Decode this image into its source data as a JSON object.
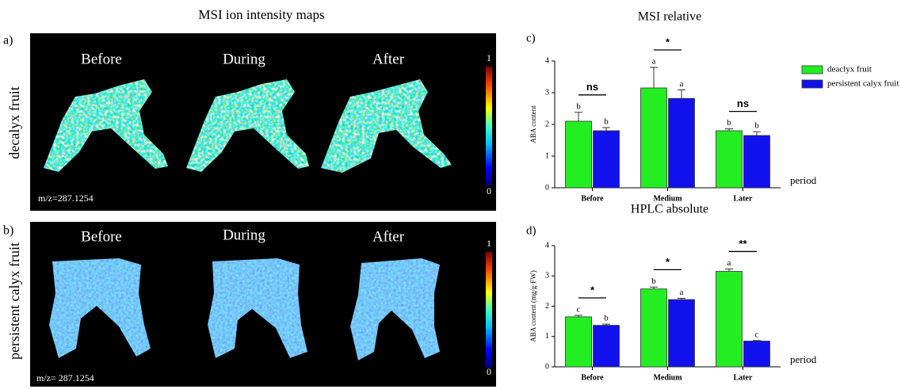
{
  "title": "MSI ion intensity maps",
  "panels": [
    {
      "label": "a)",
      "row_label": "decalyx fruit",
      "columns": [
        "Before",
        "During",
        "After"
      ],
      "colorbar": [
        1,
        0
      ],
      "mz": "m/z=287.1254"
    },
    {
      "label": "b)",
      "row_label": "persistent calyx fruit",
      "columns": [
        "Before",
        "During",
        "After"
      ],
      "colorbar": [
        1,
        0
      ],
      "mz": "m/z= 287.1254"
    }
  ],
  "chart_data": [
    {
      "type": "bar",
      "panel_label": "c)",
      "title": "MSI relative",
      "y_label": "ABA  content",
      "x_label": "period",
      "categories": [
        "Before",
        "Medium",
        "Later"
      ],
      "series": [
        {
          "name": "deaclyx fruit",
          "color": "#22ee22",
          "values": [
            2.1,
            3.15,
            1.8
          ],
          "errors": [
            0.28,
            0.65,
            0.06
          ],
          "letters": [
            "b",
            "a",
            "b"
          ]
        },
        {
          "name": "persistent calyx fruit",
          "color": "#1111ee",
          "values": [
            1.8,
            2.82,
            1.65
          ],
          "errors": [
            0.1,
            0.27,
            0.12
          ],
          "letters": [
            "b",
            "a",
            "b"
          ]
        }
      ],
      "significance": [
        "ns",
        "*",
        "ns"
      ],
      "ylim": [
        0,
        4
      ],
      "yticks": [
        0,
        1,
        2,
        3,
        4
      ]
    },
    {
      "type": "bar",
      "panel_label": "d)",
      "title": "HPLC absolute",
      "y_label": "ABA  content (mg/g·FW)",
      "x_label": "period",
      "categories": [
        "Before",
        "Medium",
        "Later"
      ],
      "series": [
        {
          "color": "#22ee22",
          "values": [
            1.65,
            2.57,
            3.15
          ],
          "errors": [
            0.05,
            0.06,
            0.08
          ],
          "letters": [
            "c",
            "b",
            "a"
          ]
        },
        {
          "color": "#1111ee",
          "values": [
            1.37,
            2.22,
            0.85
          ],
          "errors": [
            0.04,
            0.04,
            0.02
          ],
          "letters": [
            "b",
            "a",
            "c"
          ]
        }
      ],
      "significance": [
        "*",
        "*",
        "**"
      ],
      "ylim": [
        0,
        4
      ],
      "yticks": [
        0,
        1,
        2,
        3,
        4
      ]
    }
  ]
}
